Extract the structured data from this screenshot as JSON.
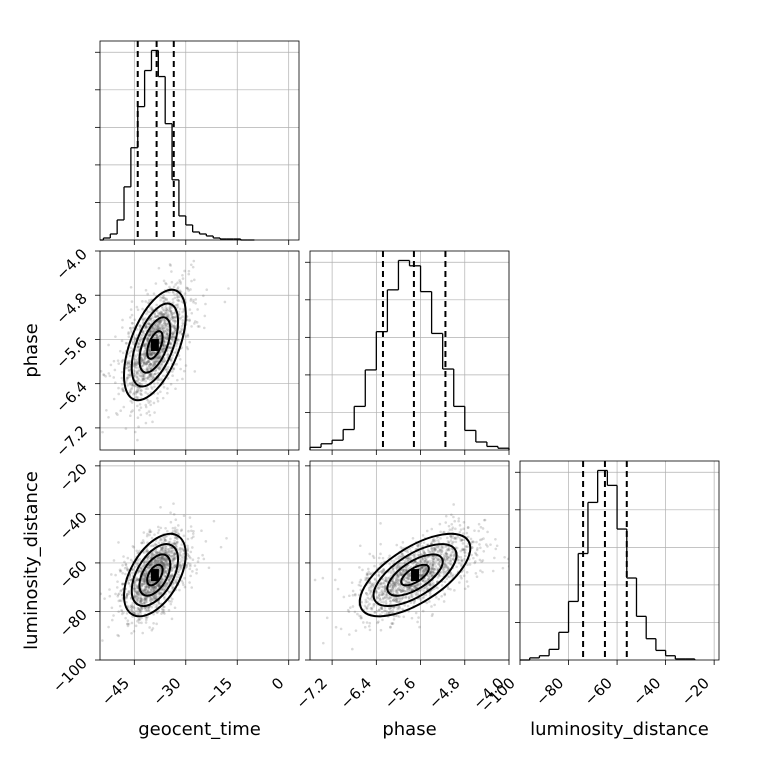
{
  "chart_data": {
    "type": "corner",
    "parameters": [
      {
        "key": "geocent_time",
        "label": "geocent_time",
        "mean": -39,
        "sigma": 4.5,
        "range": [
          -55,
          3
        ],
        "ticks": [
          -45,
          -30,
          -15,
          0
        ],
        "tick_labels": [
          "−45",
          "−30",
          "−15",
          "0"
        ],
        "quantiles": [
          -44,
          -38.5,
          -33.5
        ]
      },
      {
        "key": "phase",
        "label": "phase",
        "mean": -5.7,
        "sigma": 0.5,
        "range": [
          -7.6,
          -4.0
        ],
        "ticks": [
          -7.2,
          -6.4,
          -5.6,
          -4.8,
          -4.0
        ],
        "tick_labels": [
          "−7.2",
          "−6.4",
          "−5.6",
          "−4.8",
          "−4.0"
        ],
        "quantiles": [
          -6.28,
          -5.72,
          -5.15
        ]
      },
      {
        "key": "luminosity_distance",
        "label": "luminosity_distance",
        "mean": -65,
        "sigma": 8.5,
        "range": [
          -100,
          -18
        ],
        "ticks": [
          -100,
          -80,
          -60,
          -40,
          -20
        ],
        "tick_labels": [
          "−100",
          "−80",
          "−60",
          "−40",
          "−20"
        ],
        "quantiles": [
          -74,
          -65,
          -56
        ]
      }
    ],
    "histograms": [
      {
        "parameter": "geocent_time",
        "bin_edges": [
          -54,
          -52,
          -50,
          -48,
          -46,
          -44,
          -42,
          -40,
          -38,
          -36,
          -34,
          -32,
          -30,
          -28,
          -26,
          -24,
          -22,
          -20,
          -18,
          -16,
          -14,
          -12,
          -10
        ],
        "counts": [
          2,
          6,
          20,
          53,
          92,
          133,
          169,
          189,
          163,
          116,
          60,
          24,
          15,
          8,
          6,
          4,
          2,
          1,
          1,
          1,
          0,
          0
        ]
      },
      {
        "parameter": "phase",
        "bin_edges": [
          -7.6,
          -7.4,
          -7.2,
          -7.0,
          -6.8,
          -6.6,
          -6.4,
          -6.2,
          -6.0,
          -5.8,
          -5.6,
          -5.4,
          -5.2,
          -5.0,
          -4.8,
          -4.6,
          -4.4,
          -4.2,
          -4.0
        ],
        "counts": [
          3,
          7,
          11,
          23,
          49,
          90,
          133,
          180,
          213,
          207,
          178,
          131,
          91,
          49,
          22,
          9,
          4,
          2
        ]
      },
      {
        "parameter": "luminosity_distance",
        "bin_edges": [
          -96,
          -92,
          -88,
          -84,
          -80,
          -76,
          -72,
          -68,
          -64,
          -60,
          -56,
          -52,
          -48,
          -44,
          -40,
          -36,
          -32,
          -28
        ],
        "counts": [
          2,
          4,
          10,
          26,
          55,
          100,
          148,
          178,
          164,
          123,
          77,
          41,
          20,
          9,
          4,
          1,
          1
        ]
      }
    ],
    "pairs": [
      {
        "x": "geocent_time",
        "y": "phase",
        "correlation": 0.55
      },
      {
        "x": "geocent_time",
        "y": "luminosity_distance",
        "correlation": 0.5
      },
      {
        "x": "phase",
        "y": "luminosity_distance",
        "correlation": 0.65
      }
    ],
    "contour_levels": [
      0.5,
      1.0,
      1.5,
      2.0
    ],
    "grid": true
  }
}
